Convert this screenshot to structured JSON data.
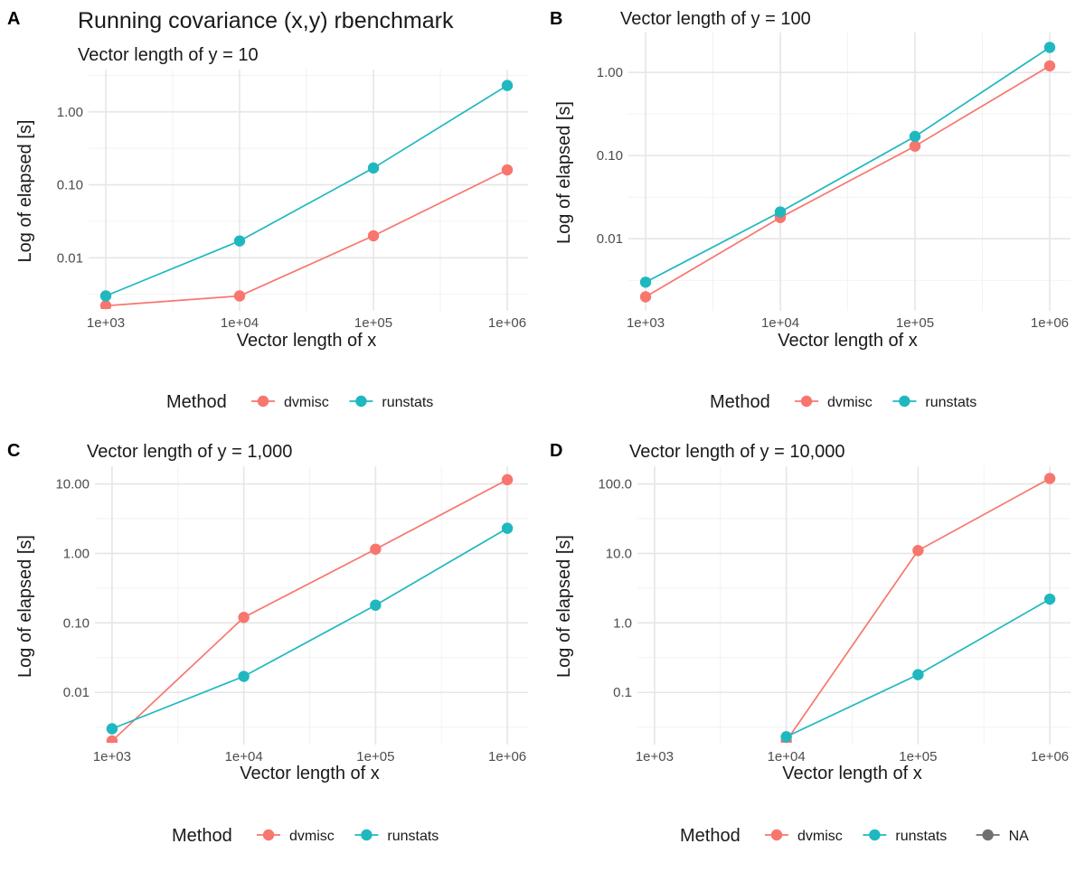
{
  "figure": {
    "main_title": "Running covariance (x,y) rbenchmark",
    "colors": {
      "dvmisc": "#F8766D",
      "runstats": "#1FB8BF",
      "NA": "#707070",
      "grid_major": "#e6e6e6",
      "grid_minor": "#f2f2f2"
    }
  },
  "chart_data": [
    {
      "panel": "A",
      "type": "line",
      "subtitle": "Vector length of y = 10",
      "xlabel": "Vector length of x",
      "ylabel": "Log of elapsed [s]",
      "x_scale": "log10",
      "y_scale": "log10",
      "xlim": [
        1000,
        1000000
      ],
      "ylim": [
        0.0021,
        3.2
      ],
      "x_ticks": [
        1000,
        10000,
        100000,
        1000000
      ],
      "x_tick_labels": [
        "1e+03",
        "1e+04",
        "1e+05",
        "1e+06"
      ],
      "y_ticks": [
        0.01,
        0.1,
        1
      ],
      "y_tick_labels": [
        "0.01",
        "0.10",
        "1.00"
      ],
      "grid": true,
      "legend": {
        "title": "Method",
        "entries": [
          "dvmisc",
          "runstats"
        ],
        "position": "bottom"
      },
      "series": [
        {
          "name": "dvmisc",
          "x": [
            1000,
            10000,
            100000,
            1000000
          ],
          "values": [
            0.0022,
            0.003,
            0.02,
            0.16
          ]
        },
        {
          "name": "runstats",
          "x": [
            1000,
            10000,
            100000,
            1000000
          ],
          "values": [
            0.003,
            0.017,
            0.17,
            2.3
          ]
        }
      ]
    },
    {
      "panel": "B",
      "type": "line",
      "subtitle": "Vector length of y = 100",
      "xlabel": "Vector length of x",
      "ylabel": "Log of elapsed [s]",
      "x_scale": "log10",
      "y_scale": "log10",
      "xlim": [
        1000,
        1000000
      ],
      "ylim": [
        0.0015,
        2.6
      ],
      "x_ticks": [
        1000,
        10000,
        100000,
        1000000
      ],
      "x_tick_labels": [
        "1e+03",
        "1e+04",
        "1e+05",
        "1e+06"
      ],
      "y_ticks": [
        0.01,
        0.1,
        1
      ],
      "y_tick_labels": [
        "0.01",
        "0.10",
        "1.00"
      ],
      "grid": true,
      "legend": {
        "title": "Method",
        "entries": [
          "dvmisc",
          "runstats"
        ],
        "position": "bottom"
      },
      "series": [
        {
          "name": "dvmisc",
          "x": [
            1000,
            10000,
            100000,
            1000000
          ],
          "values": [
            0.002,
            0.018,
            0.13,
            1.2
          ]
        },
        {
          "name": "runstats",
          "x": [
            1000,
            10000,
            100000,
            1000000
          ],
          "values": [
            0.003,
            0.021,
            0.17,
            2.0
          ]
        }
      ]
    },
    {
      "panel": "C",
      "type": "line",
      "subtitle": "Vector length of y = 1,000",
      "xlabel": "Vector length of x",
      "ylabel": "Log of elapsed [s]",
      "x_scale": "log10",
      "y_scale": "log10",
      "xlim": [
        1000,
        1000000
      ],
      "ylim": [
        0.002,
        15
      ],
      "x_ticks": [
        1000,
        10000,
        100000,
        1000000
      ],
      "x_tick_labels": [
        "1e+03",
        "1e+04",
        "1e+05",
        "1e+06"
      ],
      "y_ticks": [
        0.01,
        0.1,
        1,
        10
      ],
      "y_tick_labels": [
        "0.01",
        "0.10",
        "1.00",
        "10.00"
      ],
      "grid": true,
      "legend": {
        "title": "Method",
        "entries": [
          "dvmisc",
          "runstats"
        ],
        "position": "bottom"
      },
      "series": [
        {
          "name": "dvmisc",
          "x": [
            1000,
            10000,
            100000,
            1000000
          ],
          "values": [
            0.002,
            0.12,
            1.15,
            11.5
          ]
        },
        {
          "name": "runstats",
          "x": [
            1000,
            10000,
            100000,
            1000000
          ],
          "values": [
            0.003,
            0.017,
            0.18,
            2.3
          ]
        }
      ]
    },
    {
      "panel": "D",
      "type": "line",
      "subtitle": "Vector length of y = 10,000",
      "xlabel": "Vector length of x",
      "ylabel": "Log of elapsed [s]",
      "x_scale": "log10",
      "y_scale": "log10",
      "xlim": [
        1000,
        1000000
      ],
      "ylim": [
        0.02,
        150
      ],
      "x_ticks": [
        1000,
        10000,
        100000,
        1000000
      ],
      "x_tick_labels": [
        "1e+03",
        "1e+04",
        "1e+05",
        "1e+06"
      ],
      "y_ticks": [
        0.1,
        1,
        10,
        100
      ],
      "y_tick_labels": [
        "0.1",
        "1.0",
        "10.0",
        "100.0"
      ],
      "grid": true,
      "legend": {
        "title": "Method",
        "entries": [
          "dvmisc",
          "runstats",
          "NA"
        ],
        "position": "bottom"
      },
      "series": [
        {
          "name": "dvmisc",
          "x": [
            10000,
            100000,
            1000000
          ],
          "values": [
            0.02,
            11,
            120
          ]
        },
        {
          "name": "runstats",
          "x": [
            10000,
            100000,
            1000000
          ],
          "values": [
            0.023,
            0.18,
            2.2
          ]
        }
      ]
    }
  ]
}
